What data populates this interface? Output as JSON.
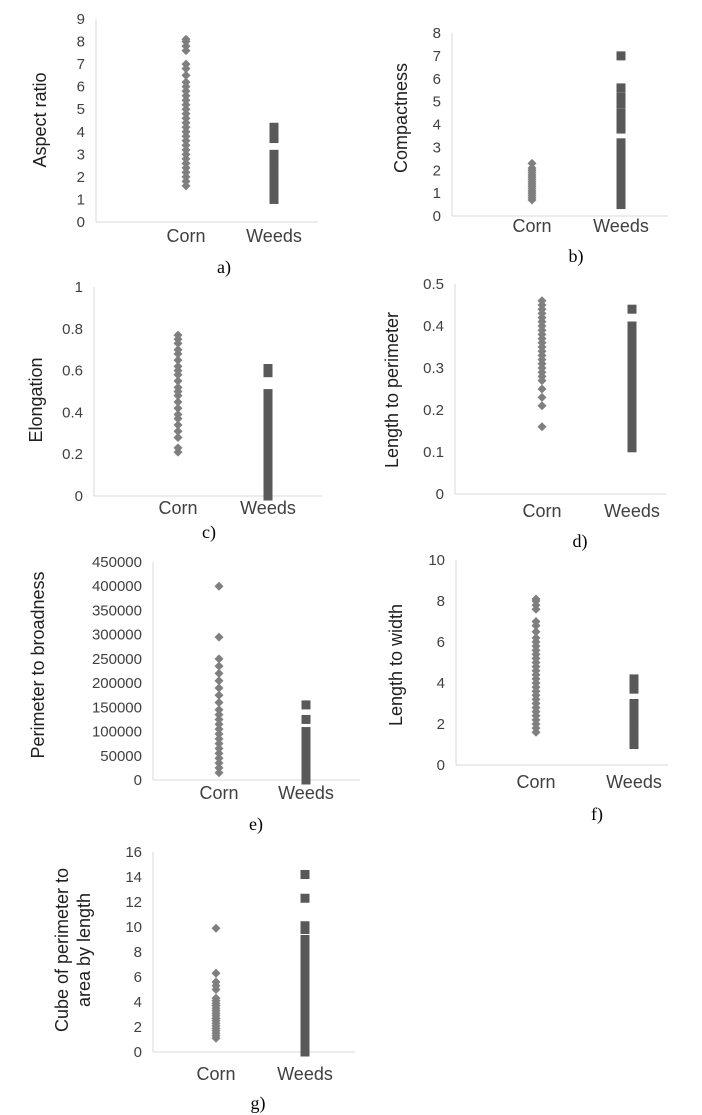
{
  "colors": {
    "corn": "#7f7f7f",
    "weeds": "#595959",
    "axis": "#d9d9d9",
    "text": "#404040"
  },
  "chart_data": [
    {
      "type": "scatter",
      "caption": "a)",
      "ylabel": "Aspect ratio",
      "ylim": [
        0,
        9
      ],
      "yticks": [
        0,
        1,
        2,
        3,
        4,
        5,
        6,
        7,
        8,
        9
      ],
      "categories": [
        "Corn",
        "Weeds"
      ],
      "series": [
        {
          "name": "Corn",
          "marker": "diamond",
          "category": "Corn",
          "values": [
            1.6,
            1.8,
            2.0,
            2.2,
            2.4,
            2.6,
            2.8,
            3.0,
            3.2,
            3.4,
            3.6,
            3.8,
            4.0,
            4.2,
            4.4,
            4.6,
            4.8,
            5.0,
            5.2,
            5.4,
            5.6,
            5.8,
            6.0,
            6.2,
            6.5,
            6.8,
            7.0,
            7.6,
            7.8,
            8.0,
            8.1
          ]
        },
        {
          "name": "Weeds",
          "marker": "square",
          "category": "Weeds",
          "values": [
            1.0,
            1.2,
            1.4,
            1.6,
            1.8,
            2.0,
            2.2,
            2.4,
            2.6,
            2.8,
            3.0,
            3.7,
            3.9,
            4.1,
            4.2
          ]
        }
      ]
    },
    {
      "type": "scatter",
      "caption": "b)",
      "ylabel": "Compactness",
      "ylim": [
        0,
        8
      ],
      "yticks": [
        0,
        1,
        2,
        3,
        4,
        5,
        6,
        7,
        8
      ],
      "categories": [
        "Corn",
        "Weeds"
      ],
      "series": [
        {
          "name": "Corn",
          "marker": "diamond",
          "category": "Corn",
          "values": [
            0.7,
            0.8,
            0.9,
            1.0,
            1.1,
            1.2,
            1.3,
            1.4,
            1.5,
            1.6,
            1.7,
            1.8,
            1.9,
            2.0,
            2.1,
            2.3
          ]
        },
        {
          "name": "Weeds",
          "marker": "square",
          "category": "Weeds",
          "values": [
            0.5,
            0.8,
            1.1,
            1.4,
            1.7,
            2.0,
            2.3,
            2.6,
            2.9,
            3.2,
            3.8,
            4.0,
            4.3,
            4.5,
            4.9,
            5.2,
            5.6,
            7.0
          ]
        }
      ]
    },
    {
      "type": "scatter",
      "caption": "c)",
      "ylabel": "Elongation",
      "ylim": [
        0,
        1
      ],
      "yticks": [
        0,
        0.2,
        0.4,
        0.6,
        0.8,
        1
      ],
      "categories": [
        "Corn",
        "Weeds"
      ],
      "series": [
        {
          "name": "Corn",
          "marker": "diamond",
          "category": "Corn",
          "values": [
            0.21,
            0.23,
            0.28,
            0.31,
            0.34,
            0.37,
            0.39,
            0.42,
            0.45,
            0.48,
            0.5,
            0.52,
            0.55,
            0.58,
            0.6,
            0.62,
            0.65,
            0.68,
            0.7,
            0.73,
            0.75,
            0.77
          ]
        },
        {
          "name": "Weeds",
          "marker": "square",
          "category": "Weeds",
          "values": [
            0.0,
            0.03,
            0.06,
            0.1,
            0.14,
            0.18,
            0.22,
            0.26,
            0.3,
            0.34,
            0.38,
            0.42,
            0.46,
            0.49,
            0.59,
            0.61
          ]
        }
      ]
    },
    {
      "type": "scatter",
      "caption": "d)",
      "ylabel": "Length to perimeter",
      "ylim": [
        0,
        0.5
      ],
      "yticks": [
        0,
        0.1,
        0.2,
        0.3,
        0.4,
        0.5
      ],
      "categories": [
        "Corn",
        "Weeds"
      ],
      "series": [
        {
          "name": "Corn",
          "marker": "diamond",
          "category": "Corn",
          "values": [
            0.16,
            0.21,
            0.23,
            0.25,
            0.27,
            0.28,
            0.29,
            0.3,
            0.31,
            0.32,
            0.33,
            0.34,
            0.35,
            0.36,
            0.37,
            0.38,
            0.39,
            0.4,
            0.41,
            0.42,
            0.43,
            0.44,
            0.45,
            0.46
          ]
        },
        {
          "name": "Weeds",
          "marker": "square",
          "category": "Weeds",
          "values": [
            0.11,
            0.13,
            0.15,
            0.17,
            0.19,
            0.21,
            0.23,
            0.25,
            0.27,
            0.29,
            0.31,
            0.33,
            0.35,
            0.37,
            0.39,
            0.4,
            0.44
          ]
        }
      ]
    },
    {
      "type": "scatter",
      "caption": "e)",
      "ylabel": "Perimeter to broadness",
      "ylim": [
        0,
        450000
      ],
      "yticks": [
        0,
        50000,
        100000,
        150000,
        200000,
        250000,
        300000,
        350000,
        400000,
        450000
      ],
      "categories": [
        "Corn",
        "Weeds"
      ],
      "series": [
        {
          "name": "Corn",
          "marker": "diamond",
          "category": "Corn",
          "values": [
            15000,
            25000,
            35000,
            45000,
            55000,
            65000,
            75000,
            85000,
            95000,
            105000,
            115000,
            125000,
            135000,
            145000,
            160000,
            175000,
            190000,
            205000,
            220000,
            235000,
            250000,
            295000,
            400000
          ]
        },
        {
          "name": "Weeds",
          "marker": "square",
          "category": "Weeds",
          "values": [
            0,
            10000,
            20000,
            30000,
            40000,
            50000,
            60000,
            70000,
            80000,
            90000,
            100000,
            125000,
            155000
          ]
        }
      ]
    },
    {
      "type": "scatter",
      "caption": "f)",
      "ylabel": "Length to width",
      "ylim": [
        0,
        10
      ],
      "yticks": [
        0,
        2,
        4,
        6,
        8,
        10
      ],
      "categories": [
        "Corn",
        "Weeds"
      ],
      "series": [
        {
          "name": "Corn",
          "marker": "diamond",
          "category": "Corn",
          "values": [
            1.6,
            1.8,
            2.0,
            2.2,
            2.4,
            2.6,
            2.8,
            3.0,
            3.2,
            3.4,
            3.6,
            3.8,
            4.0,
            4.2,
            4.4,
            4.6,
            4.8,
            5.0,
            5.2,
            5.4,
            5.6,
            5.8,
            6.0,
            6.2,
            6.5,
            6.8,
            7.0,
            7.6,
            7.8,
            8.0,
            8.1
          ]
        },
        {
          "name": "Weeds",
          "marker": "square",
          "category": "Weeds",
          "values": [
            1.0,
            1.2,
            1.4,
            1.6,
            1.8,
            2.0,
            2.2,
            2.4,
            2.6,
            2.8,
            3.0,
            3.7,
            3.9,
            4.1,
            4.2
          ]
        }
      ]
    },
    {
      "type": "scatter",
      "caption": "g)",
      "ylabel_lines": [
        "Cube of perimeter to",
        "area by length"
      ],
      "ylim": [
        0,
        16
      ],
      "yticks": [
        0,
        2,
        4,
        6,
        8,
        10,
        12,
        14,
        16
      ],
      "categories": [
        "Corn",
        "Weeds"
      ],
      "series": [
        {
          "name": "Corn",
          "marker": "diamond",
          "category": "Corn",
          "values": [
            1.1,
            1.3,
            1.5,
            1.7,
            1.9,
            2.1,
            2.3,
            2.5,
            2.7,
            2.9,
            3.1,
            3.3,
            3.5,
            3.7,
            3.9,
            4.1,
            4.3,
            5.0,
            5.3,
            5.6,
            6.3,
            9.9
          ]
        },
        {
          "name": "Weeds",
          "marker": "square",
          "category": "Weeds",
          "values": [
            0.0,
            0.5,
            1.0,
            1.5,
            2.0,
            2.5,
            3.0,
            3.5,
            4.0,
            4.5,
            5.0,
            5.5,
            6.0,
            6.5,
            7.0,
            7.5,
            8.0,
            8.5,
            9.0,
            9.8,
            10.1,
            12.3,
            14.2
          ]
        }
      ]
    }
  ]
}
